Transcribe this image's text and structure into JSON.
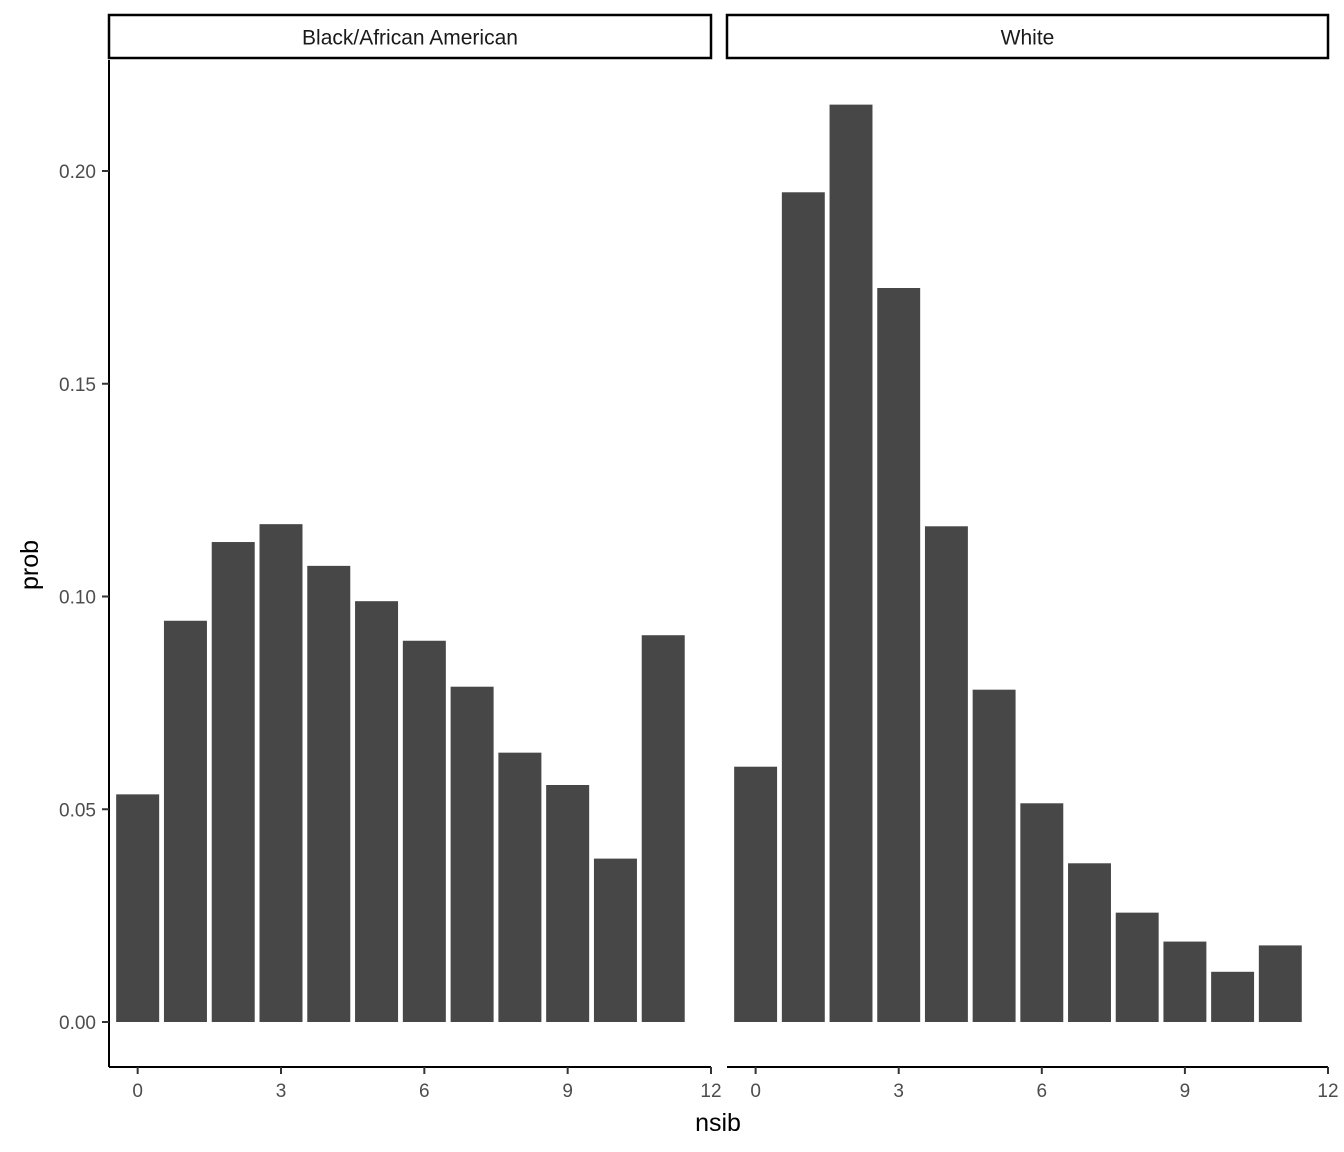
{
  "chart_data": {
    "type": "bar",
    "xlabel": "nsib",
    "ylabel": "prob",
    "x_ticks": [
      "0",
      "3",
      "6",
      "9",
      "12"
    ],
    "x_tick_values": [
      0,
      3,
      6,
      9,
      12
    ],
    "y_ticks": [
      "0.00",
      "0.05",
      "0.10",
      "0.15",
      "0.20"
    ],
    "y_tick_values": [
      0,
      0.05,
      0.1,
      0.15,
      0.2
    ],
    "xlim": [
      -0.6,
      12
    ],
    "ylim": [
      0,
      0.224
    ],
    "grid": false,
    "bar_color": "#474747",
    "panels": [
      {
        "name": "Black/African American",
        "x": [
          0,
          1,
          2,
          3,
          4,
          5,
          6,
          7,
          8,
          9,
          10,
          11
        ],
        "values": [
          0.0535,
          0.0943,
          0.1128,
          0.117,
          0.1072,
          0.0989,
          0.0896,
          0.0788,
          0.0633,
          0.0557,
          0.0384,
          0.0909
        ]
      },
      {
        "name": "White",
        "x": [
          0,
          1,
          2,
          3,
          4,
          5,
          6,
          7,
          8,
          9,
          10,
          11
        ],
        "values": [
          0.06,
          0.195,
          0.2156,
          0.1725,
          0.1165,
          0.0781,
          0.0514,
          0.0373,
          0.0257,
          0.0189,
          0.0118,
          0.018
        ]
      }
    ]
  }
}
